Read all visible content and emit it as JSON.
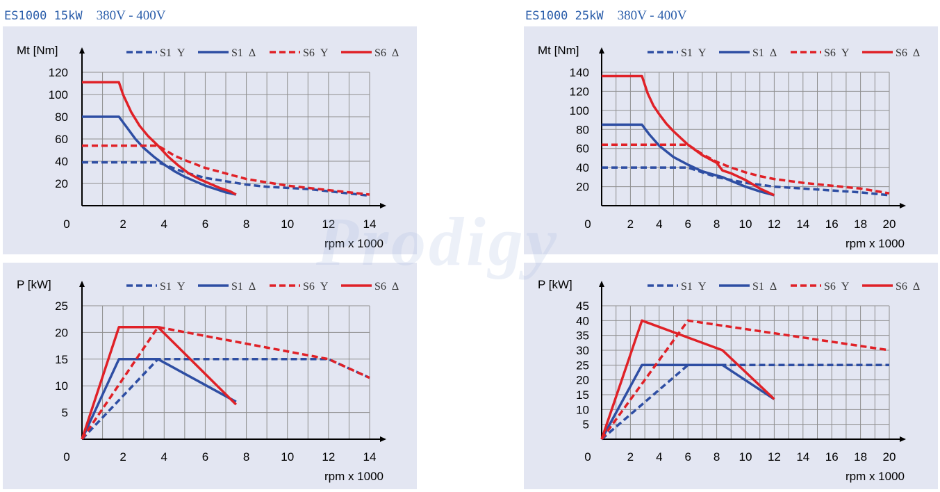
{
  "watermark": "Prodigy",
  "colors": {
    "s1": "#2e4ea3",
    "s6": "#e02127",
    "grid": "#8f8f8f",
    "axis": "#000000"
  },
  "legend": [
    "S1 Y",
    "S1 Δ",
    "S6 Y",
    "S6 Δ"
  ],
  "headers": [
    {
      "model": "ES1000 15kW",
      "voltage": "380V - 400V"
    },
    {
      "model": "ES1000 25kW",
      "voltage": "380V - 400V"
    }
  ],
  "chart_data": [
    {
      "type": "line",
      "ylabel": "Mt [Nm]",
      "xlabel": "rpm x 1000",
      "xlim": [
        0,
        14
      ],
      "ylim": [
        0,
        120
      ],
      "xticks": [
        0,
        2,
        4,
        6,
        8,
        10,
        12,
        14
      ],
      "yticks": [
        20,
        40,
        60,
        80,
        100,
        120
      ],
      "series": [
        {
          "name": "S1 Y",
          "style": "dashed",
          "color": "s1",
          "points": [
            [
              0,
              39
            ],
            [
              3.7,
              39
            ],
            [
              5,
              30
            ],
            [
              6,
              25
            ],
            [
              7,
              22
            ],
            [
              8,
              19
            ],
            [
              9,
              17
            ],
            [
              10,
              16
            ],
            [
              11,
              15
            ],
            [
              12,
              13
            ],
            [
              13,
              11
            ],
            [
              14,
              9
            ]
          ]
        },
        {
          "name": "S1 Δ",
          "style": "solid",
          "color": "s1",
          "points": [
            [
              0,
              80
            ],
            [
              1.8,
              80
            ],
            [
              2.2,
              70
            ],
            [
              2.6,
              60
            ],
            [
              3,
              52
            ],
            [
              3.5,
              44
            ],
            [
              4,
              37
            ],
            [
              4.5,
              31
            ],
            [
              5,
              26
            ],
            [
              5.5,
              22
            ],
            [
              6,
              18
            ],
            [
              6.5,
              15
            ],
            [
              7,
              12
            ],
            [
              7.5,
              10
            ]
          ]
        },
        {
          "name": "S6 Y",
          "style": "dashed",
          "color": "s6",
          "points": [
            [
              0,
              54
            ],
            [
              3.7,
              54
            ],
            [
              4.5,
              45
            ],
            [
              5,
              41
            ],
            [
              6,
              34
            ],
            [
              7,
              29
            ],
            [
              8,
              24
            ],
            [
              9,
              21
            ],
            [
              10,
              18
            ],
            [
              11,
              16
            ],
            [
              12,
              14
            ],
            [
              13,
              12
            ],
            [
              14,
              10
            ]
          ]
        },
        {
          "name": "S6 Δ",
          "style": "solid",
          "color": "s6",
          "points": [
            [
              0,
              111
            ],
            [
              1.8,
              111
            ],
            [
              2,
              100
            ],
            [
              2.4,
              84
            ],
            [
              2.8,
              72
            ],
            [
              3.2,
              63
            ],
            [
              3.7,
              54
            ],
            [
              4.2,
              44
            ],
            [
              4.7,
              36
            ],
            [
              5.2,
              29
            ],
            [
              5.7,
              24
            ],
            [
              6.2,
              20
            ],
            [
              6.7,
              16
            ],
            [
              7.2,
              13
            ],
            [
              7.5,
              10
            ]
          ]
        }
      ]
    },
    {
      "type": "line",
      "ylabel": "P [kW]",
      "xlabel": "rpm x 1000",
      "xlim": [
        0,
        14
      ],
      "ylim": [
        0,
        25
      ],
      "xticks": [
        0,
        2,
        4,
        6,
        8,
        10,
        12,
        14
      ],
      "yticks": [
        5,
        10,
        15,
        20,
        25
      ],
      "series": [
        {
          "name": "S1 Y",
          "style": "dashed",
          "color": "s1",
          "points": [
            [
              0,
              0
            ],
            [
              3.7,
              15
            ],
            [
              12,
              15
            ],
            [
              14,
              11.5
            ]
          ]
        },
        {
          "name": "S1 Δ",
          "style": "solid",
          "color": "s1",
          "points": [
            [
              0,
              0
            ],
            [
              1.8,
              15
            ],
            [
              3.7,
              15
            ],
            [
              7.5,
              7
            ]
          ]
        },
        {
          "name": "S6 Y",
          "style": "dashed",
          "color": "s6",
          "points": [
            [
              0,
              0
            ],
            [
              3.7,
              21
            ],
            [
              12,
              15
            ],
            [
              14,
              11.5
            ]
          ]
        },
        {
          "name": "S6 Δ",
          "style": "solid",
          "color": "s6",
          "points": [
            [
              0,
              0
            ],
            [
              1.8,
              21
            ],
            [
              3.7,
              21
            ],
            [
              7.5,
              6.5
            ]
          ]
        }
      ]
    },
    {
      "type": "line",
      "ylabel": "Mt [Nm]",
      "xlabel": "rpm x 1000",
      "xlim": [
        0,
        20
      ],
      "ylim": [
        0,
        140
      ],
      "xticks": [
        0,
        2,
        4,
        6,
        8,
        10,
        12,
        14,
        16,
        18,
        20
      ],
      "yticks": [
        20,
        40,
        60,
        80,
        100,
        120,
        140
      ],
      "series": [
        {
          "name": "S1 Y",
          "style": "dashed",
          "color": "s1",
          "points": [
            [
              0,
              40
            ],
            [
              6,
              40
            ],
            [
              8,
              30
            ],
            [
              10,
              24
            ],
            [
              12,
              20
            ],
            [
              14,
              18
            ],
            [
              16,
              16
            ],
            [
              18,
              14
            ],
            [
              20,
              11
            ]
          ]
        },
        {
          "name": "S1 Δ",
          "style": "solid",
          "color": "s1",
          "points": [
            [
              0,
              85
            ],
            [
              2.8,
              85
            ],
            [
              3.3,
              75
            ],
            [
              4,
              63
            ],
            [
              5,
              51
            ],
            [
              6,
              43
            ],
            [
              7,
              36
            ],
            [
              8.4,
              30
            ],
            [
              9,
              26
            ],
            [
              10,
              20
            ],
            [
              11,
              15
            ],
            [
              12,
              11
            ]
          ]
        },
        {
          "name": "S6 Y",
          "style": "dashed",
          "color": "s6",
          "points": [
            [
              0,
              64
            ],
            [
              6,
              64
            ],
            [
              7,
              54
            ],
            [
              8,
              46
            ],
            [
              9,
              40
            ],
            [
              10,
              35
            ],
            [
              11,
              31
            ],
            [
              12,
              28
            ],
            [
              14,
              24
            ],
            [
              16,
              21
            ],
            [
              18,
              18
            ],
            [
              20,
              13
            ]
          ]
        },
        {
          "name": "S6 Δ",
          "style": "solid",
          "color": "s6",
          "points": [
            [
              0,
              136
            ],
            [
              2.8,
              136
            ],
            [
              3.2,
              118
            ],
            [
              3.6,
              105
            ],
            [
              4,
              96
            ],
            [
              4.5,
              86
            ],
            [
              5,
              78
            ],
            [
              5.5,
              71
            ],
            [
              6,
              64
            ],
            [
              7,
              53
            ],
            [
              8,
              45
            ],
            [
              8.4,
              37
            ],
            [
              9,
              34
            ],
            [
              10,
              27
            ],
            [
              11,
              18
            ],
            [
              12,
              11
            ]
          ]
        }
      ]
    },
    {
      "type": "line",
      "ylabel": "P [kW]",
      "xlabel": "rpm x 1000",
      "xlim": [
        0,
        20
      ],
      "ylim": [
        0,
        45
      ],
      "xticks": [
        0,
        2,
        4,
        6,
        8,
        10,
        12,
        14,
        16,
        18,
        20
      ],
      "yticks": [
        5,
        10,
        15,
        20,
        25,
        30,
        35,
        40,
        45
      ],
      "series": [
        {
          "name": "S1 Y",
          "style": "dashed",
          "color": "s1",
          "points": [
            [
              0,
              0
            ],
            [
              6,
              25
            ],
            [
              20,
              25
            ]
          ]
        },
        {
          "name": "S1 Δ",
          "style": "solid",
          "color": "s1",
          "points": [
            [
              0,
              0
            ],
            [
              2.8,
              25
            ],
            [
              8.4,
              25
            ],
            [
              12,
              13.5
            ]
          ]
        },
        {
          "name": "S6 Y",
          "style": "dashed",
          "color": "s6",
          "points": [
            [
              0,
              0
            ],
            [
              6,
              40
            ],
            [
              20,
              30
            ]
          ]
        },
        {
          "name": "S6 Δ",
          "style": "solid",
          "color": "s6",
          "points": [
            [
              0,
              0
            ],
            [
              2.8,
              40
            ],
            [
              8.4,
              30
            ],
            [
              12,
              13.5
            ]
          ]
        }
      ]
    }
  ]
}
